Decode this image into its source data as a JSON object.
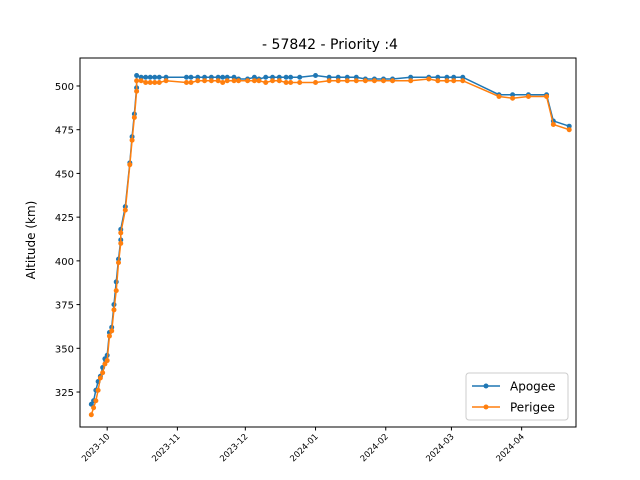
{
  "chart_data": {
    "type": "line",
    "title": "- 57842 - Priority :4",
    "xlabel": "",
    "ylabel": "Altitude (km)",
    "xlim": [
      "2023-09-19",
      "2024-04-25"
    ],
    "ylim": [
      305,
      516
    ],
    "x_ticks": [
      "2023-10",
      "2023-11",
      "2023-12",
      "2024-01",
      "2024-02",
      "2024-03",
      "2024-04"
    ],
    "y_ticks": [
      325,
      350,
      375,
      400,
      425,
      450,
      475,
      500
    ],
    "legend_position": "lower-right",
    "grid": false,
    "series": [
      {
        "name": "Apogee",
        "color": "#1f77b4",
        "points": [
          [
            "2023-09-24",
            318
          ],
          [
            "2023-09-25",
            320
          ],
          [
            "2023-09-26",
            326
          ],
          [
            "2023-09-27",
            331
          ],
          [
            "2023-09-28",
            334
          ],
          [
            "2023-09-29",
            339
          ],
          [
            "2023-09-30",
            344
          ],
          [
            "2023-10-01",
            346
          ],
          [
            "2023-10-02",
            359
          ],
          [
            "2023-10-03",
            362
          ],
          [
            "2023-10-04",
            375
          ],
          [
            "2023-10-05",
            388
          ],
          [
            "2023-10-06",
            401
          ],
          [
            "2023-10-07",
            412
          ],
          [
            "2023-10-07",
            418
          ],
          [
            "2023-10-09",
            431
          ],
          [
            "2023-10-11",
            456
          ],
          [
            "2023-10-12",
            471
          ],
          [
            "2023-10-13",
            484
          ],
          [
            "2023-10-14",
            499
          ],
          [
            "2023-10-14",
            506
          ],
          [
            "2023-10-16",
            505
          ],
          [
            "2023-10-18",
            505
          ],
          [
            "2023-10-20",
            505
          ],
          [
            "2023-10-22",
            505
          ],
          [
            "2023-10-24",
            505
          ],
          [
            "2023-10-27",
            505
          ],
          [
            "2023-11-05",
            505
          ],
          [
            "2023-11-07",
            505
          ],
          [
            "2023-11-10",
            505
          ],
          [
            "2023-11-13",
            505
          ],
          [
            "2023-11-16",
            505
          ],
          [
            "2023-11-19",
            505
          ],
          [
            "2023-11-21",
            505
          ],
          [
            "2023-11-23",
            505
          ],
          [
            "2023-11-26",
            505
          ],
          [
            "2023-11-28",
            504
          ],
          [
            "2023-12-02",
            504
          ],
          [
            "2023-12-05",
            505
          ],
          [
            "2023-12-07",
            504
          ],
          [
            "2023-12-10",
            505
          ],
          [
            "2023-12-13",
            505
          ],
          [
            "2023-12-16",
            505
          ],
          [
            "2023-12-19",
            505
          ],
          [
            "2023-12-21",
            505
          ],
          [
            "2023-12-25",
            505
          ],
          [
            "2024-01-01",
            506
          ],
          [
            "2024-01-07",
            505
          ],
          [
            "2024-01-11",
            505
          ],
          [
            "2024-01-15",
            505
          ],
          [
            "2024-01-19",
            505
          ],
          [
            "2024-01-23",
            504
          ],
          [
            "2024-01-27",
            504
          ],
          [
            "2024-01-31",
            504
          ],
          [
            "2024-02-04",
            504
          ],
          [
            "2024-02-12",
            505
          ],
          [
            "2024-02-20",
            505
          ],
          [
            "2024-02-24",
            505
          ],
          [
            "2024-02-28",
            505
          ],
          [
            "2024-03-02",
            505
          ],
          [
            "2024-03-06",
            505
          ],
          [
            "2024-03-22",
            495
          ],
          [
            "2024-03-28",
            495
          ],
          [
            "2024-04-04",
            495
          ],
          [
            "2024-04-12",
            495
          ],
          [
            "2024-04-15",
            480
          ],
          [
            "2024-04-22",
            477
          ]
        ]
      },
      {
        "name": "Perigee",
        "color": "#ff7f0e",
        "points": [
          [
            "2023-09-24",
            312
          ],
          [
            "2023-09-25",
            316
          ],
          [
            "2023-09-26",
            320
          ],
          [
            "2023-09-27",
            326
          ],
          [
            "2023-09-28",
            333
          ],
          [
            "2023-09-29",
            336
          ],
          [
            "2023-09-30",
            341
          ],
          [
            "2023-10-01",
            343
          ],
          [
            "2023-10-02",
            357
          ],
          [
            "2023-10-03",
            360
          ],
          [
            "2023-10-04",
            372
          ],
          [
            "2023-10-05",
            383
          ],
          [
            "2023-10-06",
            399
          ],
          [
            "2023-10-07",
            410
          ],
          [
            "2023-10-07",
            416
          ],
          [
            "2023-10-09",
            429
          ],
          [
            "2023-10-11",
            455
          ],
          [
            "2023-10-12",
            469
          ],
          [
            "2023-10-13",
            482
          ],
          [
            "2023-10-14",
            497
          ],
          [
            "2023-10-14",
            503
          ],
          [
            "2023-10-16",
            503
          ],
          [
            "2023-10-18",
            502
          ],
          [
            "2023-10-20",
            502
          ],
          [
            "2023-10-22",
            502
          ],
          [
            "2023-10-24",
            502
          ],
          [
            "2023-10-27",
            503
          ],
          [
            "2023-11-05",
            502
          ],
          [
            "2023-11-07",
            502
          ],
          [
            "2023-11-10",
            503
          ],
          [
            "2023-11-13",
            503
          ],
          [
            "2023-11-16",
            503
          ],
          [
            "2023-11-19",
            503
          ],
          [
            "2023-11-21",
            502
          ],
          [
            "2023-11-23",
            503
          ],
          [
            "2023-11-26",
            503
          ],
          [
            "2023-11-28",
            503
          ],
          [
            "2023-12-02",
            503
          ],
          [
            "2023-12-05",
            503
          ],
          [
            "2023-12-07",
            503
          ],
          [
            "2023-12-10",
            502
          ],
          [
            "2023-12-13",
            503
          ],
          [
            "2023-12-16",
            503
          ],
          [
            "2023-12-19",
            502
          ],
          [
            "2023-12-21",
            502
          ],
          [
            "2023-12-25",
            502
          ],
          [
            "2024-01-01",
            502
          ],
          [
            "2024-01-07",
            503
          ],
          [
            "2024-01-11",
            503
          ],
          [
            "2024-01-15",
            503
          ],
          [
            "2024-01-19",
            503
          ],
          [
            "2024-01-23",
            503
          ],
          [
            "2024-01-27",
            503
          ],
          [
            "2024-01-31",
            503
          ],
          [
            "2024-02-04",
            503
          ],
          [
            "2024-02-12",
            503
          ],
          [
            "2024-02-20",
            504
          ],
          [
            "2024-02-24",
            503
          ],
          [
            "2024-02-28",
            503
          ],
          [
            "2024-03-02",
            503
          ],
          [
            "2024-03-06",
            503
          ],
          [
            "2024-03-22",
            494
          ],
          [
            "2024-03-28",
            493
          ],
          [
            "2024-04-04",
            494
          ],
          [
            "2024-04-12",
            494
          ],
          [
            "2024-04-15",
            478
          ],
          [
            "2024-04-22",
            475
          ]
        ]
      }
    ]
  }
}
